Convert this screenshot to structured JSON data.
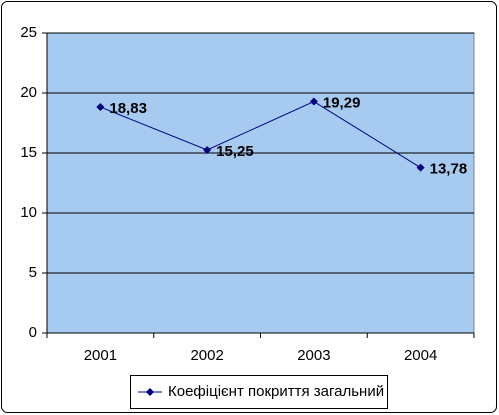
{
  "chart_data": {
    "type": "line",
    "categories": [
      "2001",
      "2002",
      "2003",
      "2004"
    ],
    "series": [
      {
        "name": "Коефіцієнт покриття загальний",
        "color": "#000080",
        "values": [
          18.83,
          15.25,
          19.29,
          13.78
        ],
        "value_labels": [
          "18,83",
          "15,25",
          "19,29",
          "13,78"
        ]
      }
    ],
    "ylim": [
      0,
      25
    ],
    "yticks": [
      0,
      5,
      10,
      15,
      20,
      25
    ],
    "grid": true,
    "plot_background": "#a6caf0",
    "legend": "bottom"
  }
}
